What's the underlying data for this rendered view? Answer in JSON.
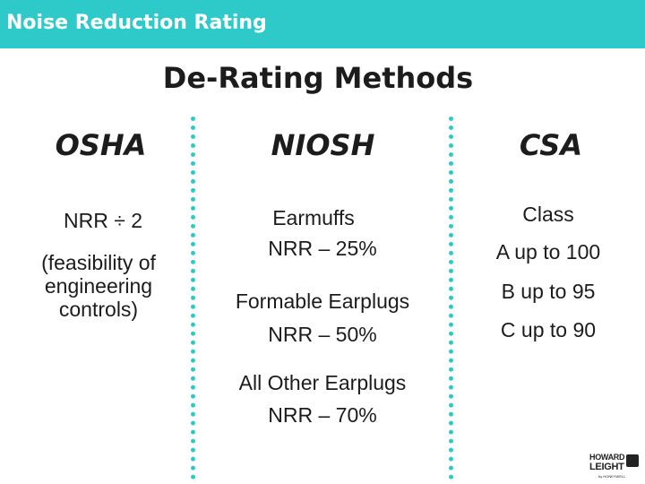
{
  "header": {
    "title": "Noise Reduction Rating"
  },
  "slide": {
    "heading": "De-Rating Methods",
    "columns": [
      {
        "name": "OSHA",
        "lines": [
          "NRR  ÷ 2",
          "(feasibility of",
          "engineering",
          "controls)"
        ]
      },
      {
        "name": "NIOSH",
        "lines": [
          "Earmuffs",
          "NRR – 25%",
          "Formable Earplugs",
          "NRR – 50%",
          "All Other Earplugs",
          "NRR – 70%"
        ]
      },
      {
        "name": "CSA",
        "lines": [
          "Class",
          "A up to 100",
          "B up to 95",
          "C up to 90"
        ]
      }
    ],
    "accent_color": "#2ec9c9"
  },
  "logo": {
    "line1": "HOWARD",
    "line2": "LEIGHT",
    "line3": "by HONEYWELL"
  }
}
